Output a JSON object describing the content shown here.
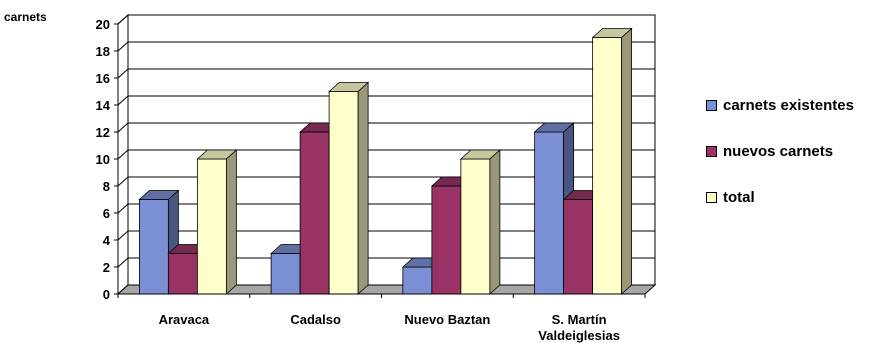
{
  "chart_data": {
    "type": "bar",
    "ylabel": "carnets",
    "ylim": [
      0,
      20
    ],
    "yticks": [
      "0",
      "2",
      "4",
      "6",
      "8",
      "10",
      "12",
      "14",
      "16",
      "18",
      "20"
    ],
    "categories": [
      "Aravaca",
      "Cadalso",
      "Nuevo Baztan",
      "S. Martín Valdeiglesias"
    ],
    "category_lines": [
      [
        "Aravaca"
      ],
      [
        "Cadalso"
      ],
      [
        "Nuevo Baztan"
      ],
      [
        "S. Martín",
        "Valdeiglesias"
      ]
    ],
    "series": [
      {
        "name": "carnets existentes",
        "values": [
          7,
          3,
          2,
          12
        ],
        "color": "#7b8fd4"
      },
      {
        "name": "nuevos carnets",
        "values": [
          3,
          12,
          8,
          7
        ],
        "color": "#993366"
      },
      {
        "name": "total",
        "values": [
          10,
          15,
          10,
          19
        ],
        "color": "#ffffcc"
      }
    ],
    "grid": true,
    "legend_position": "right",
    "style": "3d-clustered-bar"
  }
}
